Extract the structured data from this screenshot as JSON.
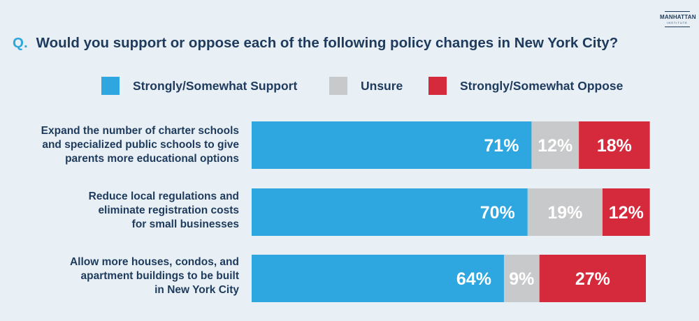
{
  "logo": {
    "main": "MANHATTAN",
    "sub": "INSTITUTE"
  },
  "question": {
    "marker": "Q.",
    "text": "Would you support or oppose each of the following policy changes in New York City?"
  },
  "colors": {
    "support": "#2ea7e0",
    "unsure": "#c8c9ca",
    "oppose": "#d42a3c",
    "text": "#1e3a5c"
  },
  "chart_data": {
    "type": "bar",
    "orientation": "horizontal",
    "stacked": true,
    "categories": [
      "Expand the number of charter schools and specialized public schools to give parents more educational options",
      "Reduce local regulations and eliminate registration costs for small businesses",
      "Allow more houses, condos, and apartment buildings to be built in New York City"
    ],
    "category_lines": [
      [
        "Expand the number of charter schools",
        "and specialized public schools to give",
        "parents more educational options"
      ],
      [
        "Reduce local regulations and",
        "eliminate registration costs",
        "for small businesses"
      ],
      [
        "Allow more houses, condos, and",
        "apartment buildings to be built",
        "in New York City"
      ]
    ],
    "series": [
      {
        "name": "Strongly/Somewhat Support",
        "color": "#2ea7e0",
        "values": [
          71,
          70,
          64
        ],
        "labels": [
          "71%",
          "70%",
          "64%"
        ]
      },
      {
        "name": "Unsure",
        "color": "#c8c9ca",
        "values": [
          12,
          19,
          9
        ],
        "labels": [
          "12%",
          "19%",
          "9%"
        ]
      },
      {
        "name": "Strongly/Somewhat Oppose",
        "color": "#d42a3c",
        "values": [
          18,
          12,
          27
        ],
        "labels": [
          "18%",
          "12%",
          "27%"
        ]
      }
    ],
    "legend_position": "top",
    "grid": false,
    "xlim": [
      0,
      100
    ]
  }
}
